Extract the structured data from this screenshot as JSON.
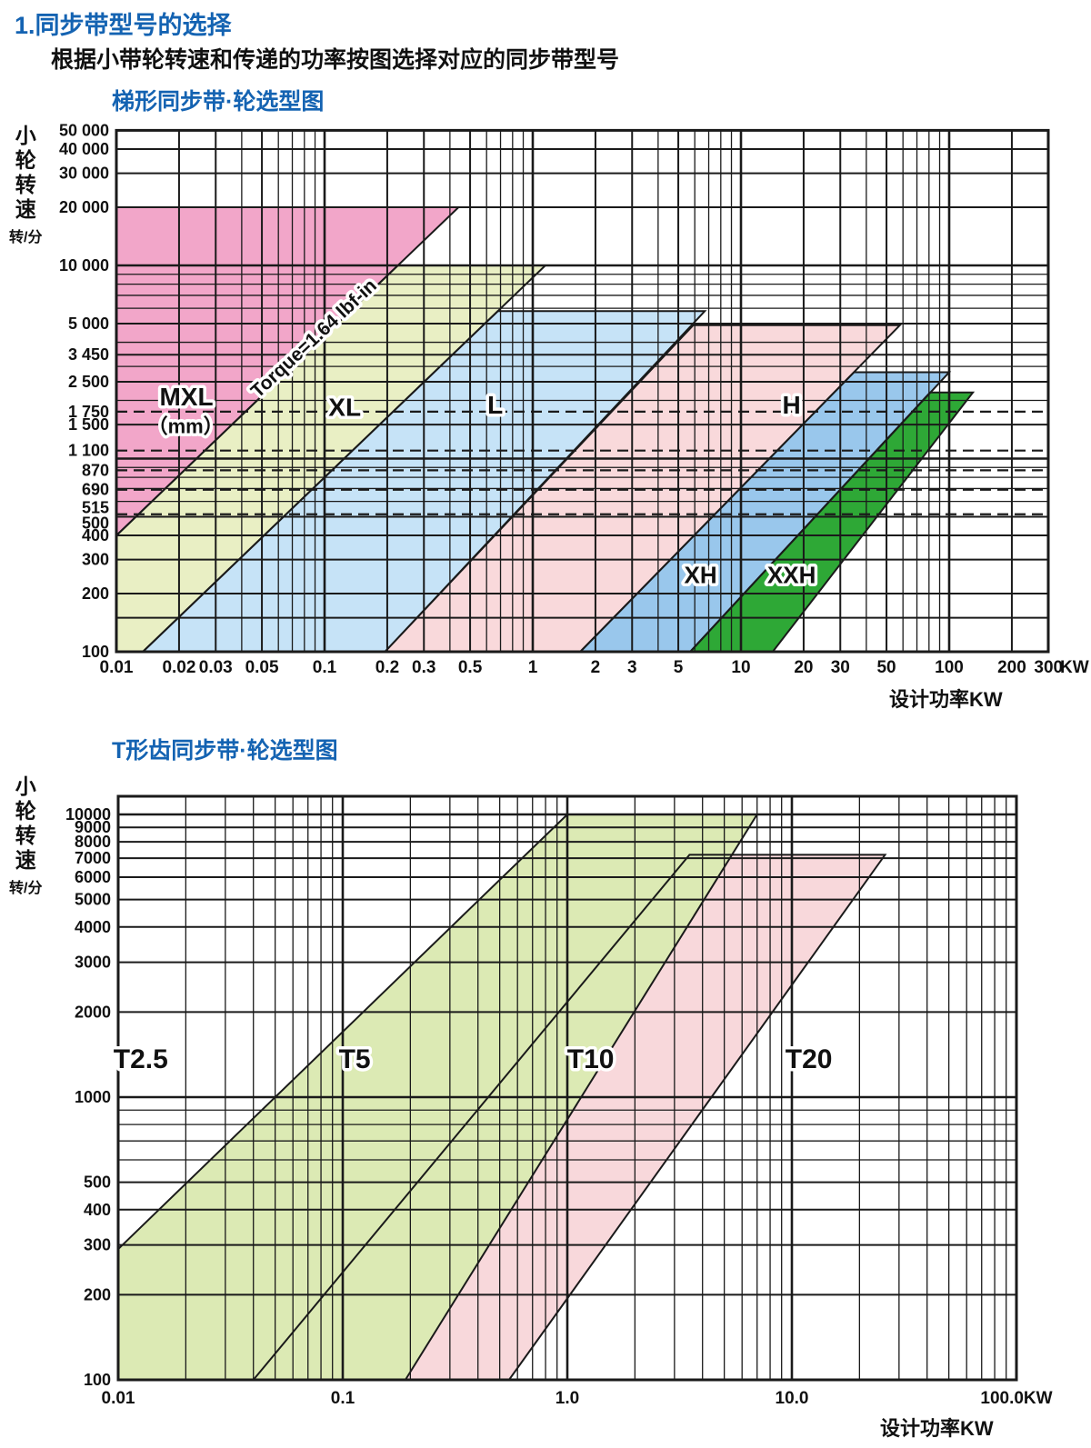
{
  "page": {
    "heading": "1.同步带型号的选择",
    "subheading": "根据小带轮转速和传递的功率按图选择对应的同步带型号"
  },
  "colors": {
    "heading_blue": "#1463B2",
    "grid_black": "#1a1a1a",
    "band_mxl_pink": "#F2A6C9",
    "band_xl_green": "#E9EFC4",
    "band_l_blue": "#C6E3F7",
    "band_h_pink": "#F9D9DB",
    "band_xh_blue": "#99C7EC",
    "band_xxh_green": "#2EA836",
    "band_t5_green": "#DCEAB4",
    "band_t10_pink": "#F8D8DB"
  },
  "chart_data": [
    {
      "type": "area",
      "title": "梯形同步带·轮选型图",
      "xlabel": "设计功率KW",
      "ylabel": "小轮转速",
      "ylabel_unit": "转/分",
      "x_scale": "log",
      "y_scale": "log",
      "xlim": [
        0.01,
        300
      ],
      "ylim": [
        100,
        50000
      ],
      "x_axis_suffix": "KW",
      "x_ticks": [
        {
          "label": "0.01",
          "v": 0.01
        },
        {
          "label": "0.02",
          "v": 0.02
        },
        {
          "label": "0.03",
          "v": 0.03
        },
        {
          "label": "0.05",
          "v": 0.05
        },
        {
          "label": "0.1",
          "v": 0.1
        },
        {
          "label": "0.2",
          "v": 0.2
        },
        {
          "label": "0.3",
          "v": 0.3
        },
        {
          "label": "0.5",
          "v": 0.5
        },
        {
          "label": "1",
          "v": 1
        },
        {
          "label": "2",
          "v": 2
        },
        {
          "label": "3",
          "v": 3
        },
        {
          "label": "5",
          "v": 5
        },
        {
          "label": "10",
          "v": 10
        },
        {
          "label": "20",
          "v": 20
        },
        {
          "label": "30",
          "v": 30
        },
        {
          "label": "50",
          "v": 50
        },
        {
          "label": "100",
          "v": 100
        },
        {
          "label": "200",
          "v": 200
        },
        {
          "label": "300",
          "v": 300
        }
      ],
      "y_ticks": [
        {
          "label": "50 000",
          "v": 50000
        },
        {
          "label": "40 000",
          "v": 40000
        },
        {
          "label": "30 000",
          "v": 30000
        },
        {
          "label": "20 000",
          "v": 20000
        },
        {
          "label": "10 000",
          "v": 10000
        },
        {
          "label": "5 000",
          "v": 5000
        },
        {
          "label": "3 450",
          "v": 3450
        },
        {
          "label": "2 500",
          "v": 2500
        },
        {
          "label": "1 750",
          "v": 1750
        },
        {
          "label": "1 500",
          "v": 1500
        },
        {
          "label": "1 100",
          "v": 1100
        },
        {
          "label": "870",
          "v": 870
        },
        {
          "label": "690",
          "v": 690
        },
        {
          "label": "515",
          "v": 515,
          "dy": -7
        },
        {
          "label": "500",
          "v": 500,
          "dy": 7
        },
        {
          "label": "400",
          "v": 400
        },
        {
          "label": "300",
          "v": 300
        },
        {
          "label": "200",
          "v": 200
        },
        {
          "label": "100",
          "v": 100
        }
      ],
      "extra_hlines": [
        3450,
        2500,
        1500,
        150
      ],
      "dashed_hlines": [
        1750,
        1100,
        870,
        690,
        515
      ],
      "bands": [
        {
          "name": "MXL",
          "color": "#F2A6C9",
          "points": [
            [
              0.01,
              400
            ],
            [
              0.01,
              20000
            ],
            [
              0.44,
              20000
            ]
          ]
        },
        {
          "name": "XL",
          "color": "#E9EFC4",
          "points": [
            [
              0.01,
              400
            ],
            [
              0.225,
              10000
            ],
            [
              1.15,
              10000
            ],
            [
              0.0134,
              100
            ],
            [
              0.01,
              100
            ]
          ]
        },
        {
          "name": "L",
          "color": "#C6E3F7",
          "points": [
            [
              0.0134,
              100
            ],
            [
              0.68,
              5800
            ],
            [
              6.7,
              5800
            ],
            [
              0.195,
              100
            ]
          ]
        },
        {
          "name": "H",
          "color": "#F9D9DB",
          "points": [
            [
              0.195,
              100
            ],
            [
              5.9,
              4900
            ],
            [
              58,
              4900
            ],
            [
              1.69,
              100
            ]
          ]
        },
        {
          "name": "XH",
          "color": "#99C7EC",
          "points": [
            [
              1.69,
              100
            ],
            [
              34.9,
              2800
            ],
            [
              100,
              2800
            ],
            [
              5.7,
              100
            ]
          ]
        },
        {
          "name": "XXH",
          "color": "#2EA836",
          "points": [
            [
              5.7,
              100
            ],
            [
              81,
              2200
            ],
            [
              130,
              2200
            ],
            [
              14.2,
              100
            ]
          ]
        }
      ],
      "labels": [
        {
          "text": "MXL",
          "p": 0.0217,
          "v": 2100,
          "size": 28,
          "halo": true
        },
        {
          "text": "（mm）",
          "p": 0.0215,
          "v": 1470,
          "size": 22,
          "halo": true
        },
        {
          "text": "Torque=1.64 lbf-in",
          "p": 0.093,
          "v": 4300,
          "size": 21,
          "rotate": -43,
          "halo": true
        },
        {
          "text": "XL",
          "p": 0.125,
          "v": 1850,
          "size": 28,
          "halo": true
        },
        {
          "text": "L",
          "p": 0.66,
          "v": 1900,
          "size": 28,
          "halo": true
        },
        {
          "text": "H",
          "p": 17.5,
          "v": 1900,
          "size": 28,
          "halo": true
        },
        {
          "text": "XH",
          "p": 6.4,
          "v": 250,
          "size": 26,
          "halo": true
        },
        {
          "text": "XXH",
          "p": 17.5,
          "v": 250,
          "size": 26,
          "halo": true
        }
      ]
    },
    {
      "type": "area",
      "title": "T形齿同步带·轮选型图",
      "xlabel": "设计功率KW",
      "ylabel": "小轮转速",
      "ylabel_unit": "转/分",
      "x_scale": "log",
      "y_scale": "log",
      "xlim": [
        0.01,
        100
      ],
      "ylim": [
        100,
        11600
      ],
      "x_axis_suffix": "",
      "x_ticks": [
        {
          "label": "0.01",
          "v": 0.01
        },
        {
          "label": "0.1",
          "v": 0.1
        },
        {
          "label": "1.0",
          "v": 1
        },
        {
          "label": "10.0",
          "v": 10
        },
        {
          "label": "100.0KW",
          "v": 100
        }
      ],
      "y_ticks": [
        {
          "label": "10000",
          "v": 10000
        },
        {
          "label": "9000",
          "v": 9000
        },
        {
          "label": "8000",
          "v": 8000
        },
        {
          "label": "7000",
          "v": 7000
        },
        {
          "label": "6000",
          "v": 6000
        },
        {
          "label": "5000",
          "v": 5000
        },
        {
          "label": "4000",
          "v": 4000
        },
        {
          "label": "3000",
          "v": 3000
        },
        {
          "label": "2000",
          "v": 2000
        },
        {
          "label": "1000",
          "v": 1000
        },
        {
          "label": "500",
          "v": 500
        },
        {
          "label": "400",
          "v": 400
        },
        {
          "label": "300",
          "v": 300
        },
        {
          "label": "200",
          "v": 200
        },
        {
          "label": "100",
          "v": 100
        }
      ],
      "extra_hlines": [],
      "dashed_hlines": [],
      "bands": [
        {
          "name": "T10",
          "color": "#F8D8DB",
          "points": [
            [
              0.04,
              100
            ],
            [
              3.5,
              7200
            ],
            [
              26,
              7200
            ],
            [
              0.55,
              100
            ]
          ]
        },
        {
          "name": "T5",
          "color": "#DCEAB4",
          "points": [
            [
              0.01,
              290
            ],
            [
              1.0,
              10000
            ],
            [
              7.0,
              10000
            ],
            [
              0.19,
              100
            ],
            [
              0.01,
              100
            ]
          ]
        }
      ],
      "labels": [
        {
          "text": "T2.5",
          "p": 0.0126,
          "v": 1370,
          "size": 30,
          "halo": true
        },
        {
          "text": "T5",
          "p": 0.113,
          "v": 1370,
          "size": 30,
          "halo": true
        },
        {
          "text": "T10",
          "p": 1.27,
          "v": 1370,
          "size": 30,
          "halo": true
        },
        {
          "text": "T20",
          "p": 11.9,
          "v": 1370,
          "size": 30,
          "halo": true
        }
      ]
    }
  ]
}
